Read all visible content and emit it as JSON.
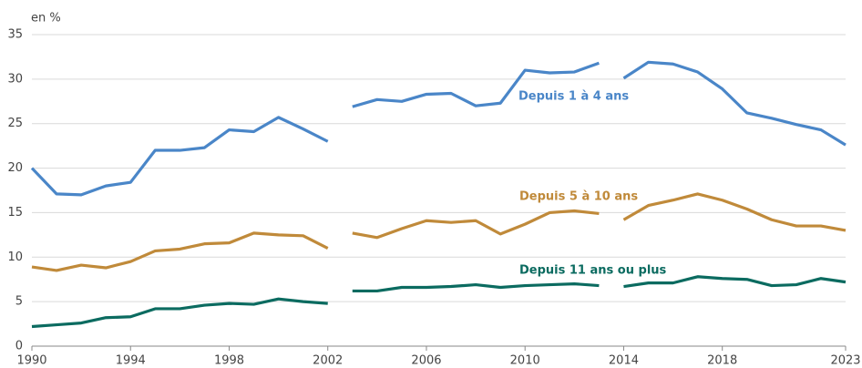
{
  "chart_data": {
    "type": "line",
    "y_label": "en %",
    "x": [
      1990,
      1991,
      1992,
      1993,
      1994,
      1995,
      1996,
      1997,
      1998,
      1999,
      2000,
      2001,
      2002,
      2003,
      2004,
      2005,
      2006,
      2007,
      2008,
      2009,
      2010,
      2011,
      2012,
      2013,
      2014,
      2015,
      2016,
      2017,
      2018,
      2019,
      2020,
      2021,
      2022,
      2023
    ],
    "breaks": [
      2003,
      2014
    ],
    "series": [
      {
        "name": "Depuis 1 à 4 ans",
        "color": "#4a86c8",
        "values": [
          20,
          17.1,
          17,
          18,
          18.4,
          22,
          22,
          22.3,
          24.3,
          24.1,
          25.7,
          24.4,
          23,
          26.9,
          27.7,
          27.5,
          28.3,
          28.4,
          27,
          27.3,
          31,
          30.7,
          30.8,
          31.8,
          30.1,
          31.9,
          31.7,
          30.8,
          28.9,
          26.2,
          25.6,
          24.9,
          24.3,
          22.6
        ]
      },
      {
        "name": "Depuis 5 à 10 ans",
        "color": "#c08a3a",
        "values": [
          8.9,
          8.5,
          9.1,
          8.8,
          9.5,
          10.7,
          10.9,
          11.5,
          11.6,
          12.7,
          12.5,
          12.4,
          11,
          12.7,
          12.2,
          13.2,
          14.1,
          13.9,
          14.1,
          12.6,
          13.7,
          15,
          15.2,
          14.9,
          14.2,
          15.8,
          16.4,
          17.1,
          16.4,
          15.4,
          14.2,
          13.5,
          13.5,
          13
        ]
      },
      {
        "name": "Depuis 11 ans ou plus",
        "color": "#0b6b60",
        "values": [
          2.2,
          2.4,
          2.6,
          3.2,
          3.3,
          4.2,
          4.2,
          4.6,
          4.8,
          4.7,
          5.3,
          5,
          4.8,
          6.2,
          6.2,
          6.6,
          6.6,
          6.7,
          6.9,
          6.6,
          6.8,
          6.9,
          7,
          6.8,
          6.7,
          7.1,
          7.1,
          7.8,
          7.6,
          7.5,
          6.8,
          6.9,
          7.6,
          7.2
        ]
      }
    ],
    "xlim": [
      1990,
      2023
    ],
    "xticks": [
      1990,
      1994,
      1998,
      2002,
      2006,
      2010,
      2014,
      2018,
      2023
    ],
    "ylim": [
      0,
      35
    ],
    "yticks": [
      0,
      5,
      10,
      15,
      20,
      25,
      30,
      35
    ],
    "grid": true
  }
}
